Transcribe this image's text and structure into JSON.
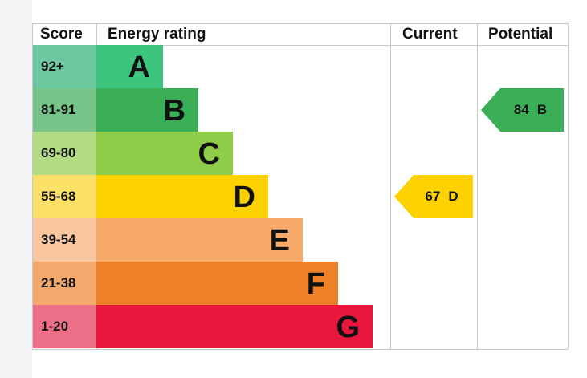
{
  "headers": {
    "score": "Score",
    "energy_rating": "Energy rating",
    "current": "Current",
    "potential": "Potential"
  },
  "bands": [
    {
      "score": "92+",
      "letter": "A",
      "color": "#3cc57e",
      "score_bg": "#6cc8a0"
    },
    {
      "score": "81-91",
      "letter": "B",
      "color": "#3aaf58",
      "score_bg": "#76c48a"
    },
    {
      "score": "69-80",
      "letter": "C",
      "color": "#8fcc48",
      "score_bg": "#b2dc84"
    },
    {
      "score": "55-68",
      "letter": "D",
      "color": "#fdd200",
      "score_bg": "#fde067"
    },
    {
      "score": "39-54",
      "letter": "E",
      "color": "#f7aa6a",
      "score_bg": "#f9c6a0"
    },
    {
      "score": "21-38",
      "letter": "F",
      "color": "#ee8128",
      "score_bg": "#f3a86c"
    },
    {
      "score": "1-20",
      "letter": "G",
      "color": "#e8173b",
      "score_bg": "#ee7088"
    }
  ],
  "current": {
    "value": "67",
    "letter": "D",
    "color": "#fdd200"
  },
  "potential": {
    "value": "84",
    "letter": "B",
    "color": "#3aaf58"
  },
  "chart_data": {
    "type": "table",
    "columns": [
      "Score",
      "Energy rating",
      "Current",
      "Potential"
    ],
    "rows": [
      [
        "92+",
        "A",
        "",
        ""
      ],
      [
        "81-91",
        "B",
        "",
        "84 B"
      ],
      [
        "69-80",
        "C",
        "",
        ""
      ],
      [
        "55-68",
        "D",
        "67 D",
        ""
      ],
      [
        "39-54",
        "E",
        "",
        ""
      ],
      [
        "21-38",
        "F",
        "",
        ""
      ],
      [
        "1-20",
        "G",
        "",
        ""
      ]
    ],
    "current": {
      "value": 67,
      "band": "D"
    },
    "potential": {
      "value": 84,
      "band": "B"
    }
  }
}
